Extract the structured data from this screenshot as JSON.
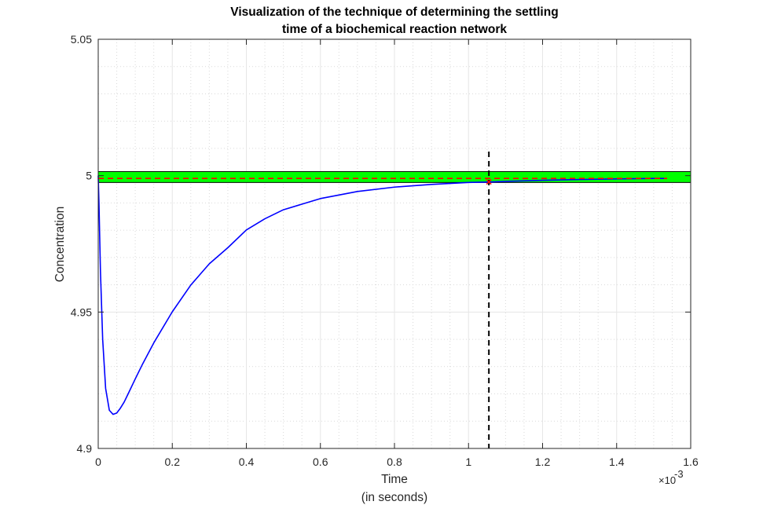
{
  "chart_data": {
    "type": "line",
    "title_line1": "Visualization of the technique of determining the settling",
    "title_line2": "time of a biochemical reaction network",
    "xlabel_line1": "Time",
    "xlabel_line2": "(in seconds)",
    "ylabel": "Concentration",
    "x_exponent_base": "×10",
    "x_exponent_power": "-3",
    "xlim": [
      0,
      1.6
    ],
    "ylim": [
      4.9,
      5.05
    ],
    "x_ticks": [
      0,
      0.2,
      0.4,
      0.6,
      0.8,
      1,
      1.2,
      1.4,
      1.6
    ],
    "x_tick_labels": [
      "0",
      "0.2",
      "0.4",
      "0.6",
      "0.8",
      "1",
      "1.2",
      "1.4",
      "1.6"
    ],
    "y_ticks": [
      4.9,
      4.95,
      5,
      5.05
    ],
    "y_tick_labels": [
      "4.9",
      "4.95",
      "5",
      "5.05"
    ],
    "grid": true,
    "minor_grid": true,
    "series": [
      {
        "color": "#0000ff",
        "x": [
          0,
          0.002,
          0.006,
          0.012,
          0.02,
          0.03,
          0.04,
          0.05,
          0.06,
          0.07,
          0.08,
          0.1,
          0.12,
          0.15,
          0.2,
          0.25,
          0.3,
          0.35,
          0.4,
          0.45,
          0.5,
          0.6,
          0.7,
          0.8,
          0.9,
          1.0,
          1.06,
          1.1,
          1.2,
          1.3,
          1.4,
          1.5,
          1.53
        ],
        "y": [
          5.0,
          4.99,
          4.965,
          4.94,
          4.922,
          4.914,
          4.9125,
          4.913,
          4.9148,
          4.917,
          4.9198,
          4.9255,
          4.931,
          4.9387,
          4.9501,
          4.9599,
          4.9677,
          4.9736,
          4.9801,
          4.9842,
          4.9875,
          4.9916,
          4.9942,
          4.9958,
          4.9968,
          4.9975,
          4.9977,
          4.9979,
          4.9983,
          4.9986,
          4.9988,
          4.999,
          4.999
        ]
      }
    ],
    "steady_state_value": 4.999,
    "steady_state_color": "#ff0000",
    "settling_band": [
      4.9975,
      5.0015
    ],
    "settling_band_color": "#00ff00",
    "settling_time": 1.055,
    "settling_line_color": "#000000",
    "settling_marker": {
      "x": 1.055,
      "y": 4.9977,
      "color": "#ff0000"
    }
  }
}
